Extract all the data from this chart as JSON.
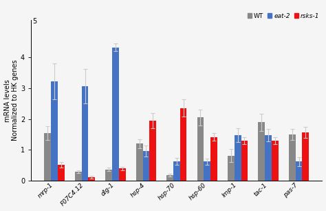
{
  "categories": [
    "mrp-1",
    "F07C4.12",
    "dlg-1",
    "hsp-4",
    "hsp-70",
    "hsp-60",
    "lmp-1",
    "tac-1",
    "pas-7"
  ],
  "WT": [
    1.55,
    0.3,
    0.37,
    1.2,
    0.18,
    2.05,
    0.82,
    1.9,
    1.5
  ],
  "eat2": [
    3.22,
    3.06,
    4.32,
    0.97,
    0.63,
    0.63,
    1.48,
    1.48,
    0.62
  ],
  "rsks1": [
    0.52,
    0.12,
    0.4,
    1.95,
    2.35,
    1.42,
    1.3,
    1.3,
    1.57
  ],
  "WT_err": [
    0.22,
    0.05,
    0.06,
    0.15,
    0.05,
    0.25,
    0.22,
    0.28,
    0.18
  ],
  "eat2_err": [
    0.58,
    0.55,
    0.12,
    0.18,
    0.12,
    0.1,
    0.22,
    0.2,
    0.15
  ],
  "rsks1_err": [
    0.08,
    0.04,
    0.06,
    0.25,
    0.28,
    0.12,
    0.12,
    0.12,
    0.18
  ],
  "color_WT": "#888888",
  "color_eat2": "#4472C4",
  "color_rsks1": "#EE1111",
  "ylabel": "mRNA levels\nNormalized to HK genes",
  "ytick_labels": [
    "0",
    "1",
    "2",
    "3",
    "4"
  ],
  "yticks": [
    0,
    1,
    2,
    3,
    4
  ],
  "y5_label": "5",
  "ylim": [
    0,
    5.2
  ],
  "legend_labels": [
    "WT",
    "eat-2",
    "rsks-1"
  ],
  "bar_width": 0.22,
  "ecolor": "#cccccc",
  "bg_color": "#f5f5f5"
}
